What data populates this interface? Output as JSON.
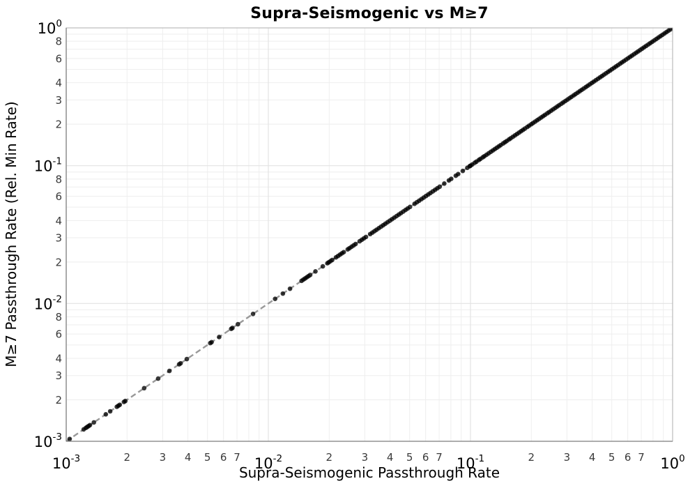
{
  "chart_data": {
    "type": "scatter",
    "title": "Supra-Seismogenic vs M≥7",
    "xlabel": "Supra-Seismogenic Passthrough Rate",
    "ylabel": "M≥7 Passthrough Rate (Rel. Min Rate)",
    "x_scale": "log",
    "y_scale": "log",
    "xlim": [
      0.001,
      1.0
    ],
    "ylim": [
      0.001,
      1.0
    ],
    "grid": true,
    "legend": "none",
    "relation": "All points lie on the identity line y = x",
    "reference_line": {
      "type": "identity",
      "style": "dashed",
      "color": "#999999",
      "from": [
        0.001,
        0.001
      ],
      "to": [
        1.0,
        1.0
      ]
    },
    "points_y_equal_x": true,
    "marker": {
      "shape": "circle",
      "radius_px": 3.3,
      "color": "#000000",
      "opacity": 0.78
    },
    "points_x": [
      0.00104,
      0.00122,
      0.00125,
      0.00127,
      0.00129,
      0.00131,
      0.00137,
      0.00157,
      0.00165,
      0.00178,
      0.00181,
      0.00184,
      0.00193,
      0.00196,
      0.00243,
      0.00285,
      0.00324,
      0.00362,
      0.00368,
      0.00395,
      0.00516,
      0.00524,
      0.00571,
      0.00655,
      0.00664,
      0.00707,
      0.0084,
      0.0108,
      0.0118,
      0.0128,
      0.0146,
      0.0149,
      0.0152,
      0.0155,
      0.0158,
      0.0161,
      0.0171,
      0.0186,
      0.0196,
      0.0199,
      0.0203,
      0.0207,
      0.0216,
      0.0221,
      0.0226,
      0.0231,
      0.0236,
      0.0247,
      0.0252,
      0.0258,
      0.0264,
      0.027,
      0.0283,
      0.029,
      0.0297,
      0.0304,
      0.0319,
      0.0327,
      0.0335,
      0.0343,
      0.0352,
      0.0361,
      0.037,
      0.0379,
      0.0389,
      0.0399,
      0.0409,
      0.042,
      0.0431,
      0.0442,
      0.0453,
      0.0465,
      0.0477,
      0.0489,
      0.0502,
      0.0529,
      0.0543,
      0.0557,
      0.0572,
      0.0587,
      0.0602,
      0.0618,
      0.0634,
      0.0651,
      0.0668,
      0.0686,
      0.0704,
      0.0742,
      0.0782,
      0.0803,
      0.0846,
      0.0869,
      0.0916,
      0.0965,
      0.0991,
      0.1,
      0.102,
      0.105,
      0.107,
      0.11,
      0.112,
      0.115,
      0.117,
      0.12,
      0.123,
      0.126,
      0.129,
      0.132,
      0.135,
      0.138,
      0.141,
      0.145,
      0.148,
      0.151,
      0.155,
      0.158,
      0.162,
      0.166,
      0.17,
      0.174,
      0.178,
      0.182,
      0.186,
      0.191,
      0.195,
      0.2,
      0.204,
      0.209,
      0.214,
      0.219,
      0.224,
      0.229,
      0.234,
      0.24,
      0.245,
      0.251,
      0.257,
      0.263,
      0.269,
      0.275,
      0.282,
      0.288,
      0.295,
      0.302,
      0.309,
      0.316,
      0.324,
      0.331,
      0.339,
      0.347,
      0.355,
      0.363,
      0.372,
      0.38,
      0.389,
      0.398,
      0.407,
      0.417,
      0.427,
      0.437,
      0.447,
      0.457,
      0.468,
      0.479,
      0.49,
      0.501,
      0.513,
      0.525,
      0.537,
      0.55,
      0.562,
      0.575,
      0.589,
      0.603,
      0.617,
      0.631,
      0.646,
      0.661,
      0.676,
      0.692,
      0.708,
      0.724,
      0.741,
      0.759,
      0.776,
      0.794,
      0.813,
      0.832,
      0.851,
      0.871,
      0.891,
      0.912,
      0.933,
      0.955,
      0.977,
      1.0
    ]
  },
  "axes": {
    "x": {
      "label": "Supra-Seismogenic Passthrough Rate",
      "major_tick_exponents": [
        "-3",
        "-2",
        "-1",
        "0"
      ],
      "minor_tick_labels": [
        "2",
        "3",
        "4",
        "5",
        "6",
        "7"
      ]
    },
    "y": {
      "label": "M≥7 Passthrough Rate (Rel. Min Rate)",
      "major_tick_exponents": [
        "0",
        "-1",
        "-2",
        "-3"
      ],
      "minor_tick_labels": [
        "8",
        "6",
        "4",
        "3",
        "2"
      ]
    }
  },
  "style": {
    "background": "#ffffff",
    "grid_major": "#e3e3e3",
    "grid_minor": "#eeeeee",
    "axis_line": "#808080",
    "border": "#b3b3b3",
    "tick_text": "#000000",
    "minor_tick_text": "#3a3a3a",
    "point_color": "#000000",
    "dashed_line_color": "#999999"
  }
}
